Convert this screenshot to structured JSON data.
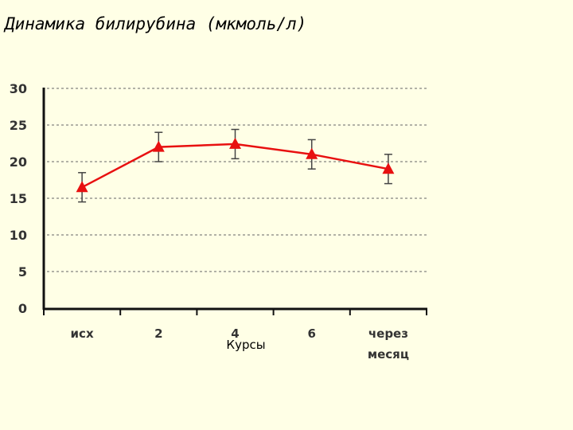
{
  "chart_data": {
    "type": "line",
    "title": "Динамика билирубина (мкмоль/л)",
    "xlabel": "Курсы",
    "ylabel": "",
    "ylim": [
      0,
      30
    ],
    "yticks": [
      "0",
      "5",
      "10",
      "15",
      "20",
      "25",
      "30"
    ],
    "categories": [
      [
        "исх"
      ],
      [
        "2"
      ],
      [
        "4"
      ],
      [
        "6"
      ],
      [
        "через",
        "месяц"
      ]
    ],
    "series": [
      {
        "values": [
          16.5,
          22.0,
          22.4,
          21.0,
          19.0
        ],
        "error": [
          2.0,
          2.0,
          2.0,
          2.0,
          2.0
        ],
        "color": "#e81010"
      }
    ],
    "grid": true,
    "marker": "triangle"
  }
}
